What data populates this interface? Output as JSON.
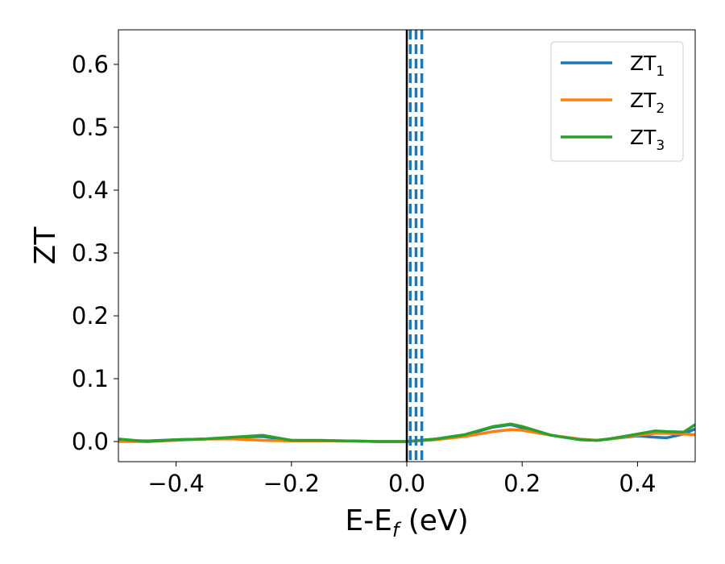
{
  "chart_data": {
    "type": "line",
    "xlabel": "E-E",
    "xlabel_sub": "f",
    "xlabel_unit": " (eV)",
    "ylabel": "ZT",
    "xlim": [
      -0.5,
      0.5
    ],
    "ylim": [
      -0.032,
      0.655
    ],
    "x_ticks": [
      -0.4,
      -0.2,
      0.0,
      0.2,
      0.4
    ],
    "x_tick_labels": [
      "−0.4",
      "−0.2",
      "0.0",
      "0.2",
      "0.4"
    ],
    "y_ticks": [
      0.0,
      0.1,
      0.2,
      0.3,
      0.4,
      0.5,
      0.6
    ],
    "y_tick_labels": [
      "0.0",
      "0.1",
      "0.2",
      "0.3",
      "0.4",
      "0.5",
      "0.6"
    ],
    "grid": false,
    "legend_placement": "top-right",
    "series": [
      {
        "name": "ZT",
        "name_sub": "1",
        "color": "#1f77b4",
        "x": [
          -0.5,
          -0.45,
          -0.4,
          -0.35,
          -0.3,
          -0.25,
          -0.2,
          -0.15,
          -0.1,
          -0.05,
          0.0,
          0.05,
          0.1,
          0.15,
          0.18,
          0.2,
          0.25,
          0.3,
          0.33,
          0.35,
          0.4,
          0.43,
          0.45,
          0.48,
          0.5
        ],
        "y": [
          0.002,
          0.001,
          0.003,
          0.004,
          0.007,
          0.008,
          0.002,
          0.001,
          0.001,
          0.0,
          0.0,
          0.004,
          0.01,
          0.023,
          0.027,
          0.022,
          0.01,
          0.003,
          0.002,
          0.004,
          0.009,
          0.007,
          0.006,
          0.012,
          0.02
        ]
      },
      {
        "name": "ZT",
        "name_sub": "2",
        "color": "#ff7f0e",
        "x": [
          -0.5,
          -0.45,
          -0.4,
          -0.35,
          -0.3,
          -0.25,
          -0.2,
          -0.15,
          -0.1,
          -0.05,
          0.0,
          0.05,
          0.1,
          0.15,
          0.18,
          0.2,
          0.25,
          0.3,
          0.33,
          0.35,
          0.4,
          0.43,
          0.45,
          0.48,
          0.5
        ],
        "y": [
          0.0,
          0.0,
          0.002,
          0.004,
          0.004,
          0.002,
          0.001,
          0.001,
          0.001,
          0.0,
          0.0,
          0.003,
          0.008,
          0.016,
          0.019,
          0.018,
          0.01,
          0.004,
          0.002,
          0.004,
          0.01,
          0.013,
          0.013,
          0.012,
          0.011
        ]
      },
      {
        "name": "ZT",
        "name_sub": "3",
        "color": "#2ca02c",
        "x": [
          -0.5,
          -0.45,
          -0.4,
          -0.35,
          -0.3,
          -0.25,
          -0.2,
          -0.15,
          -0.1,
          -0.05,
          0.0,
          0.05,
          0.1,
          0.15,
          0.18,
          0.2,
          0.25,
          0.3,
          0.33,
          0.35,
          0.4,
          0.43,
          0.45,
          0.48,
          0.5
        ],
        "y": [
          0.004,
          0.0,
          0.003,
          0.004,
          0.007,
          0.01,
          0.002,
          0.002,
          0.001,
          0.0,
          0.0,
          0.004,
          0.011,
          0.024,
          0.028,
          0.024,
          0.01,
          0.003,
          0.002,
          0.004,
          0.012,
          0.017,
          0.016,
          0.015,
          0.027
        ]
      }
    ],
    "vertical_lines": [
      {
        "x": 0.0,
        "style": "solid",
        "color": "#000000"
      },
      {
        "x": 0.006,
        "style": "dashed",
        "color": "#1f77b4"
      },
      {
        "x": 0.016,
        "style": "dashed",
        "color": "#1f77b4"
      },
      {
        "x": 0.026,
        "style": "dashed",
        "color": "#1f77b4"
      }
    ]
  }
}
